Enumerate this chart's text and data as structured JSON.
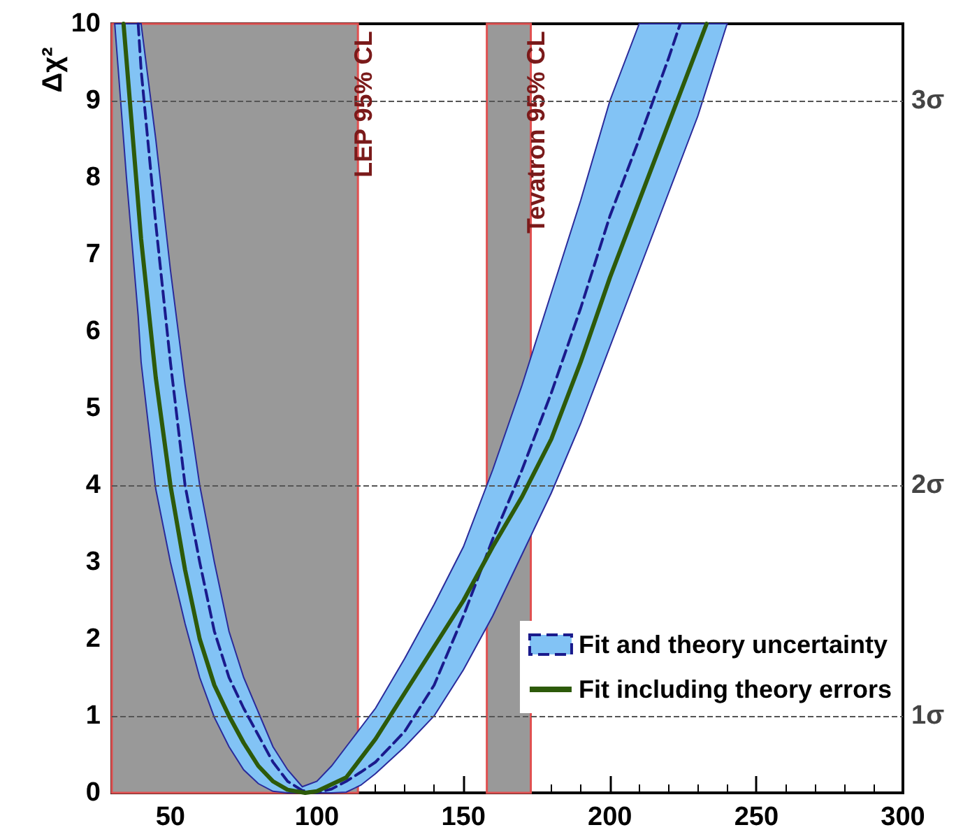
{
  "chart_data": {
    "type": "line",
    "ylabel": "Δχ²",
    "xlim": [
      30,
      300
    ],
    "xticks": [
      50,
      100,
      150,
      200,
      250,
      300
    ],
    "ylim": [
      0,
      10
    ],
    "yticks": [
      0,
      1,
      2,
      3,
      4,
      5,
      6,
      7,
      8,
      9,
      10
    ],
    "grid": false,
    "legend": "bottom right",
    "marker": "none",
    "ref_lines": [
      {
        "axis": "y",
        "value": 1,
        "label": "1σ",
        "color": "#555555",
        "line_style": "dashed"
      },
      {
        "axis": "y",
        "value": 4,
        "label": "2σ",
        "color": "#555555",
        "line_style": "dashed"
      },
      {
        "axis": "y",
        "value": 9,
        "label": "3σ",
        "color": "#555555",
        "line_style": "dashed"
      }
    ],
    "bands": [
      {
        "axis": "x",
        "from": 30,
        "to": 114,
        "label": "LEP 95% CL",
        "color": "#999999"
      },
      {
        "axis": "x",
        "from": 158,
        "to": 173,
        "label": "Tevatron 95% CL",
        "color": "#999999"
      }
    ],
    "series": [
      {
        "name": "Fit and theory uncertainty",
        "color": "#1a1a8c",
        "line_style": "dashed",
        "x": [
          31,
          35,
          39,
          40,
          45,
          50,
          55,
          60,
          65,
          70,
          75,
          80,
          85,
          90,
          95,
          100,
          105,
          110,
          115,
          120,
          130,
          140,
          150,
          160,
          170,
          180,
          190,
          200,
          210,
          220,
          224,
          230,
          240
        ],
        "values": [
          null,
          null,
          10,
          9.4,
          7.4,
          5.6,
          4.0,
          3.0,
          2.1,
          1.5,
          1.1,
          0.75,
          0.4,
          0.15,
          0.03,
          0,
          0.05,
          0.15,
          0.27,
          0.4,
          0.8,
          1.4,
          2.3,
          3.3,
          4.2,
          5.2,
          6.3,
          7.5,
          8.5,
          9.55,
          10,
          null,
          null
        ],
        "lower": [
          10,
          8.0,
          6.2,
          5.6,
          3.95,
          3.0,
          2.2,
          1.5,
          0.98,
          0.6,
          0.3,
          0.12,
          0.02,
          0,
          0,
          0,
          0,
          0.01,
          0.1,
          0.25,
          0.6,
          1.0,
          1.6,
          2.3,
          3.1,
          3.9,
          4.8,
          5.8,
          6.8,
          7.8,
          8.2,
          8.8,
          10
        ],
        "upper": [
          10,
          10,
          10,
          10,
          8.5,
          6.8,
          5.3,
          4.0,
          3.0,
          2.1,
          1.5,
          1.05,
          0.6,
          0.3,
          0.08,
          0.15,
          0.35,
          0.6,
          0.85,
          1.1,
          1.75,
          2.45,
          3.2,
          4.2,
          5.3,
          6.5,
          7.7,
          9,
          10,
          10,
          10,
          10,
          10
        ]
      },
      {
        "name": "Fit including theory errors",
        "color": "#2d5a0a",
        "line_style": "solid",
        "x": [
          34,
          40,
          45,
          50,
          55,
          60,
          65,
          70,
          75,
          80,
          85,
          90,
          96,
          100,
          110,
          120,
          125,
          130,
          140,
          150,
          160,
          170,
          180,
          190,
          200,
          210,
          220,
          233
        ],
        "values": [
          10,
          7.2,
          5.4,
          4.0,
          2.9,
          2.0,
          1.4,
          1.0,
          0.65,
          0.35,
          0.15,
          0.04,
          0,
          0.02,
          0.2,
          0.7,
          1.0,
          1.3,
          1.9,
          2.5,
          3.2,
          3.85,
          4.6,
          5.6,
          6.7,
          7.7,
          8.7,
          10
        ]
      }
    ]
  }
}
